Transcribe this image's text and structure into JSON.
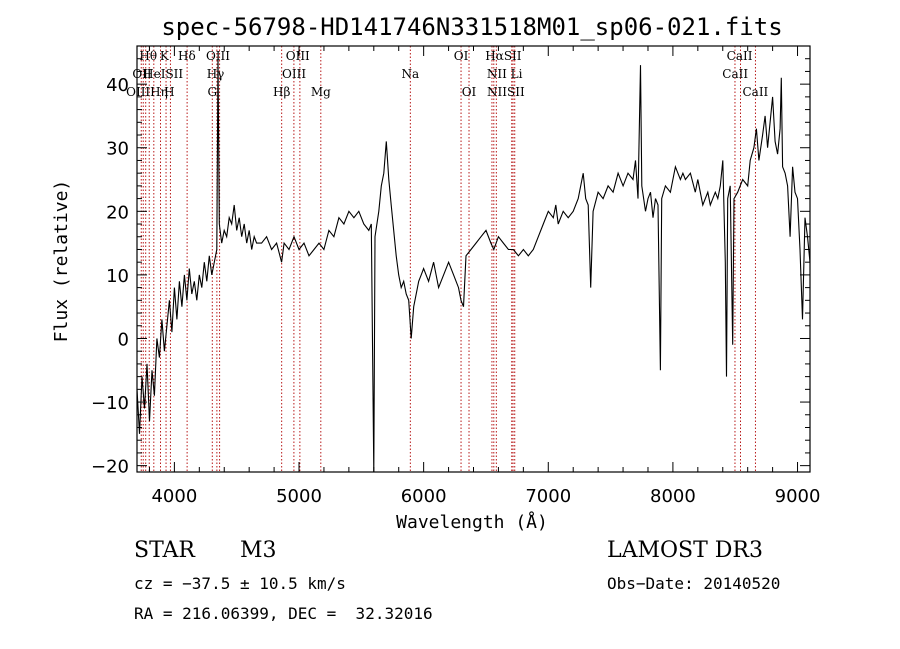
{
  "colors": {
    "axis": "#000000",
    "spectrum": "#000000",
    "line_marker": "#b00000",
    "background": "#ffffff"
  },
  "chart_data": {
    "type": "line",
    "title": "spec-56798-HD141746N331518M01_sp06-021.fits",
    "xlabel": "Wavelength (Å)",
    "ylabel": "Flux (relative)",
    "xlim": [
      3700,
      9100
    ],
    "ylim": [
      -21,
      46
    ],
    "xticks": [
      4000,
      5000,
      6000,
      7000,
      8000,
      9000
    ],
    "yticks": [
      -20,
      -10,
      0,
      10,
      20,
      30,
      40
    ],
    "grid": false,
    "series": [
      {
        "values": [
          [
            3700,
            -8
          ],
          [
            3720,
            -15
          ],
          [
            3740,
            -6
          ],
          [
            3760,
            -11
          ],
          [
            3780,
            -4
          ],
          [
            3800,
            -13
          ],
          [
            3820,
            -5
          ],
          [
            3840,
            -9
          ],
          [
            3860,
            0
          ],
          [
            3880,
            -3
          ],
          [
            3900,
            3
          ],
          [
            3920,
            -2
          ],
          [
            3940,
            2
          ],
          [
            3960,
            6
          ],
          [
            3980,
            1
          ],
          [
            4000,
            8
          ],
          [
            4020,
            3
          ],
          [
            4040,
            9
          ],
          [
            4060,
            5
          ],
          [
            4080,
            10
          ],
          [
            4100,
            6
          ],
          [
            4120,
            11
          ],
          [
            4140,
            7
          ],
          [
            4160,
            9
          ],
          [
            4180,
            6
          ],
          [
            4200,
            10
          ],
          [
            4220,
            8
          ],
          [
            4240,
            12
          ],
          [
            4260,
            9
          ],
          [
            4280,
            13
          ],
          [
            4300,
            10
          ],
          [
            4320,
            12
          ],
          [
            4340,
            14
          ],
          [
            4350,
            44
          ],
          [
            4360,
            18
          ],
          [
            4380,
            15
          ],
          [
            4400,
            17
          ],
          [
            4420,
            16
          ],
          [
            4440,
            19
          ],
          [
            4460,
            18
          ],
          [
            4480,
            21
          ],
          [
            4500,
            17
          ],
          [
            4520,
            19
          ],
          [
            4540,
            16
          ],
          [
            4560,
            18
          ],
          [
            4580,
            15
          ],
          [
            4600,
            17
          ],
          [
            4620,
            14
          ],
          [
            4640,
            16
          ],
          [
            4660,
            15
          ],
          [
            4700,
            15
          ],
          [
            4740,
            16
          ],
          [
            4780,
            14
          ],
          [
            4820,
            15
          ],
          [
            4860,
            12
          ],
          [
            4880,
            15
          ],
          [
            4920,
            14
          ],
          [
            4960,
            16
          ],
          [
            5000,
            14
          ],
          [
            5040,
            15
          ],
          [
            5080,
            13
          ],
          [
            5120,
            14
          ],
          [
            5160,
            15
          ],
          [
            5200,
            14
          ],
          [
            5240,
            17
          ],
          [
            5280,
            16
          ],
          [
            5320,
            19
          ],
          [
            5360,
            18
          ],
          [
            5400,
            20
          ],
          [
            5440,
            19
          ],
          [
            5480,
            20
          ],
          [
            5520,
            18
          ],
          [
            5560,
            17
          ],
          [
            5580,
            18
          ],
          [
            5600,
            -21
          ],
          [
            5610,
            16
          ],
          [
            5640,
            20
          ],
          [
            5660,
            24
          ],
          [
            5680,
            26
          ],
          [
            5700,
            31
          ],
          [
            5720,
            25
          ],
          [
            5740,
            21
          ],
          [
            5760,
            17
          ],
          [
            5780,
            13
          ],
          [
            5800,
            10
          ],
          [
            5820,
            8
          ],
          [
            5840,
            9
          ],
          [
            5860,
            7
          ],
          [
            5880,
            6
          ],
          [
            5900,
            0
          ],
          [
            5920,
            5
          ],
          [
            5940,
            7
          ],
          [
            5960,
            9
          ],
          [
            5980,
            10
          ],
          [
            6000,
            11
          ],
          [
            6040,
            9
          ],
          [
            6080,
            12
          ],
          [
            6120,
            8
          ],
          [
            6160,
            10
          ],
          [
            6200,
            12
          ],
          [
            6240,
            10
          ],
          [
            6280,
            8
          ],
          [
            6300,
            6
          ],
          [
            6320,
            5
          ],
          [
            6340,
            13
          ],
          [
            6380,
            14
          ],
          [
            6420,
            15
          ],
          [
            6460,
            16
          ],
          [
            6500,
            17
          ],
          [
            6540,
            15
          ],
          [
            6563,
            14
          ],
          [
            6600,
            16
          ],
          [
            6640,
            15
          ],
          [
            6680,
            14
          ],
          [
            6720,
            14
          ],
          [
            6760,
            13
          ],
          [
            6800,
            14
          ],
          [
            6840,
            13
          ],
          [
            6880,
            14
          ],
          [
            6920,
            16
          ],
          [
            6960,
            18
          ],
          [
            7000,
            20
          ],
          [
            7040,
            19
          ],
          [
            7060,
            21
          ],
          [
            7080,
            18
          ],
          [
            7120,
            20
          ],
          [
            7160,
            19
          ],
          [
            7200,
            20
          ],
          [
            7240,
            22
          ],
          [
            7260,
            24
          ],
          [
            7280,
            26
          ],
          [
            7300,
            22
          ],
          [
            7320,
            21
          ],
          [
            7340,
            8
          ],
          [
            7360,
            20
          ],
          [
            7400,
            23
          ],
          [
            7440,
            22
          ],
          [
            7480,
            24
          ],
          [
            7520,
            23
          ],
          [
            7560,
            26
          ],
          [
            7600,
            24
          ],
          [
            7640,
            26
          ],
          [
            7680,
            25
          ],
          [
            7700,
            28
          ],
          [
            7720,
            22
          ],
          [
            7740,
            43
          ],
          [
            7750,
            24
          ],
          [
            7780,
            20
          ],
          [
            7800,
            22
          ],
          [
            7820,
            23
          ],
          [
            7840,
            19
          ],
          [
            7860,
            22
          ],
          [
            7880,
            21
          ],
          [
            7900,
            -5
          ],
          [
            7910,
            22
          ],
          [
            7940,
            24
          ],
          [
            7980,
            23
          ],
          [
            8000,
            25
          ],
          [
            8020,
            27
          ],
          [
            8040,
            26
          ],
          [
            8060,
            25
          ],
          [
            8080,
            26
          ],
          [
            8100,
            25
          ],
          [
            8140,
            26
          ],
          [
            8180,
            23
          ],
          [
            8200,
            25
          ],
          [
            8240,
            21
          ],
          [
            8280,
            23
          ],
          [
            8300,
            21
          ],
          [
            8320,
            22
          ],
          [
            8340,
            23
          ],
          [
            8360,
            22
          ],
          [
            8380,
            24
          ],
          [
            8400,
            28
          ],
          [
            8420,
            12
          ],
          [
            8430,
            -6
          ],
          [
            8440,
            22
          ],
          [
            8460,
            24
          ],
          [
            8480,
            -1
          ],
          [
            8490,
            22
          ],
          [
            8520,
            23
          ],
          [
            8560,
            25
          ],
          [
            8600,
            24
          ],
          [
            8620,
            28
          ],
          [
            8650,
            30
          ],
          [
            8670,
            33
          ],
          [
            8690,
            28
          ],
          [
            8720,
            32
          ],
          [
            8740,
            35
          ],
          [
            8760,
            30
          ],
          [
            8780,
            34
          ],
          [
            8800,
            38
          ],
          [
            8820,
            31
          ],
          [
            8840,
            29
          ],
          [
            8860,
            33
          ],
          [
            8870,
            41
          ],
          [
            8880,
            27
          ],
          [
            8900,
            26
          ],
          [
            8920,
            24
          ],
          [
            8940,
            16
          ],
          [
            8960,
            27
          ],
          [
            8980,
            23
          ],
          [
            9000,
            22
          ],
          [
            9020,
            14
          ],
          [
            9040,
            3
          ],
          [
            9060,
            19
          ],
          [
            9080,
            16
          ],
          [
            9100,
            12
          ]
        ]
      }
    ],
    "line_markers": [
      {
        "wavelength": 3734,
        "labels": [
          "OII"
        ]
      },
      {
        "wavelength": 3750,
        "labels": [
          "OIII"
        ]
      },
      {
        "wavelength": 3770,
        "labels": [
          "Hθ"
        ]
      },
      {
        "wavelength": 3798,
        "labels": [
          "Hη"
        ]
      },
      {
        "wavelength": 3835,
        "labels": [
          "HeI"
        ]
      },
      {
        "wavelength": 3889,
        "labels": [
          "K"
        ]
      },
      {
        "wavelength": 3933,
        "labels": [
          "H"
        ]
      },
      {
        "wavelength": 3968,
        "labels": [
          "SII"
        ]
      },
      {
        "wavelength": 4102,
        "labels": [
          "Hδ"
        ]
      },
      {
        "wavelength": 4304,
        "labels": [
          "G"
        ]
      },
      {
        "wavelength": 4341,
        "labels": [
          "Hγ"
        ]
      },
      {
        "wavelength": 4363,
        "labels": [
          "OIII"
        ]
      },
      {
        "wavelength": 4861,
        "labels": [
          "Hβ"
        ]
      },
      {
        "wavelength": 4959,
        "labels": [
          "OIII"
        ]
      },
      {
        "wavelength": 5007,
        "labels": [
          "OIII"
        ]
      },
      {
        "wavelength": 5175,
        "labels": [
          "Mg"
        ]
      },
      {
        "wavelength": 5893,
        "labels": [
          "Na"
        ]
      },
      {
        "wavelength": 6300,
        "labels": [
          "OI"
        ]
      },
      {
        "wavelength": 6364,
        "labels": [
          "OI"
        ]
      },
      {
        "wavelength": 6548,
        "labels": [
          "NII"
        ]
      },
      {
        "wavelength": 6563,
        "labels": [
          "Hα"
        ]
      },
      {
        "wavelength": 6583,
        "labels": [
          "NII"
        ]
      },
      {
        "wavelength": 6707,
        "labels": [
          "Li"
        ]
      },
      {
        "wavelength": 6717,
        "labels": [
          "SII"
        ]
      },
      {
        "wavelength": 6731,
        "labels": [
          "SII"
        ]
      },
      {
        "wavelength": 8498,
        "labels": [
          "CaII"
        ]
      },
      {
        "wavelength": 8542,
        "labels": [
          "CaII"
        ]
      },
      {
        "wavelength": 8662,
        "labels": [
          "CaII"
        ]
      }
    ],
    "line_label_glyphs": [
      {
        "text": "Hθ",
        "wavelength": 3790,
        "row": 1
      },
      {
        "text": "K",
        "wavelength": 3920,
        "row": 1
      },
      {
        "text": "Hδ",
        "wavelength": 4100,
        "row": 1
      },
      {
        "text": "OIII",
        "wavelength": 4350,
        "row": 1
      },
      {
        "text": "OIII",
        "wavelength": 4990,
        "row": 1
      },
      {
        "text": "OI",
        "wavelength": 6300,
        "row": 1
      },
      {
        "text": "HαSII",
        "wavelength": 6640,
        "row": 1
      },
      {
        "text": "CaII",
        "wavelength": 8535,
        "row": 1
      },
      {
        "text": "OII",
        "wavelength": 3740,
        "row": 2
      },
      {
        "text": "HeISII",
        "wavelength": 3910,
        "row": 2
      },
      {
        "text": "Hγ",
        "wavelength": 4330,
        "row": 2
      },
      {
        "text": "OIII",
        "wavelength": 4960,
        "row": 2
      },
      {
        "text": "Na",
        "wavelength": 5893,
        "row": 2
      },
      {
        "text": "NII Li",
        "wavelength": 6650,
        "row": 2
      },
      {
        "text": "CaII",
        "wavelength": 8500,
        "row": 2
      },
      {
        "text": "OIIIHη",
        "wavelength": 3780,
        "row": 3
      },
      {
        "text": "H",
        "wavelength": 3960,
        "row": 3
      },
      {
        "text": "G",
        "wavelength": 4304,
        "row": 3
      },
      {
        "text": "Hβ",
        "wavelength": 4861,
        "row": 3
      },
      {
        "text": "Mg",
        "wavelength": 5175,
        "row": 3
      },
      {
        "text": "OI",
        "wavelength": 6364,
        "row": 3
      },
      {
        "text": "NIISII",
        "wavelength": 6660,
        "row": 3
      },
      {
        "text": "CaII",
        "wavelength": 8662,
        "row": 3
      }
    ]
  },
  "info": {
    "object_class": "STAR",
    "subclass": "M3",
    "survey": "LAMOST DR3",
    "cz": "cz = −37.5 ± 10.5 km/s",
    "obs_date": "Obs−Date: 20140520",
    "coords": "RA = 216.06399, DEC =  32.32016"
  }
}
